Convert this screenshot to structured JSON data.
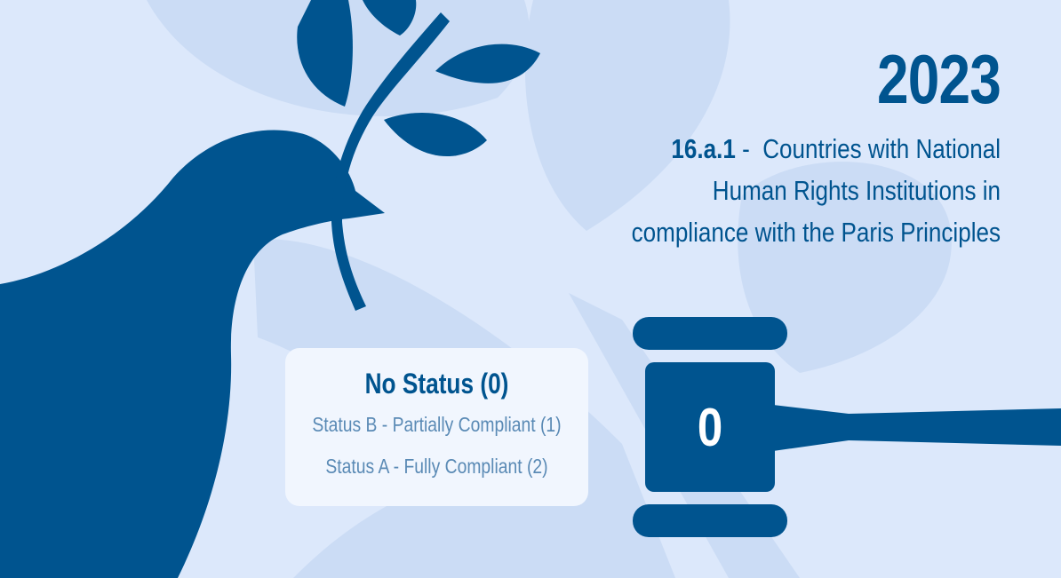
{
  "header": {
    "year": "2023",
    "indicator_code": "16.a.1",
    "indicator_separator": " - ",
    "indicator_title": "Countries with National Human Rights Institutions in compliance with the Paris Principles"
  },
  "status_selector": {
    "selected": "No Status (0)",
    "options": [
      "Status B - Partially Compliant (1)",
      "Status A - Fully Compliant (2)"
    ]
  },
  "count": {
    "value": "0"
  },
  "colors": {
    "background": "#dce8fb",
    "shape_light": "#cbdcf5",
    "primary": "#00548f",
    "card": "#f1f6fe",
    "muted_text": "#5a8ab5"
  },
  "icons": [
    "dove-icon",
    "olive-branch-icon",
    "gavel-icon"
  ]
}
